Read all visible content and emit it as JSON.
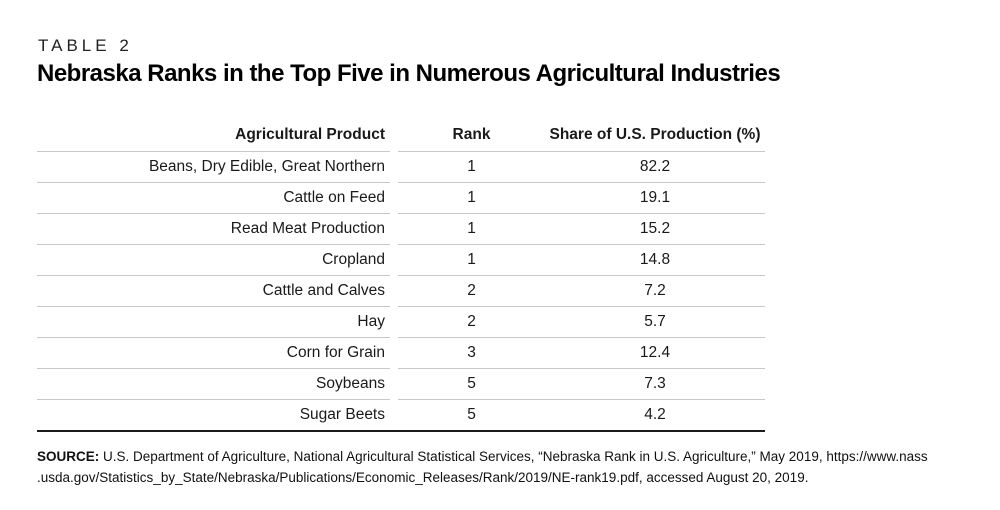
{
  "header": {
    "table_label": "TABLE 2",
    "title": "Nebraska Ranks in the Top Five in Numerous Agricultural Industries"
  },
  "table": {
    "columns": [
      "Agricultural Product",
      "Rank",
      "Share of U.S. Production (%)"
    ],
    "rows": [
      {
        "product": "Beans, Dry Edible, Great Northern",
        "rank": "1",
        "share": "82.2"
      },
      {
        "product": "Cattle on Feed",
        "rank": "1",
        "share": "19.1"
      },
      {
        "product": "Read Meat Production",
        "rank": "1",
        "share": "15.2"
      },
      {
        "product": "Cropland",
        "rank": "1",
        "share": "14.8"
      },
      {
        "product": "Cattle and Calves",
        "rank": "2",
        "share": "7.2"
      },
      {
        "product": "Hay",
        "rank": "2",
        "share": "5.7"
      },
      {
        "product": "Corn for Grain",
        "rank": "3",
        "share": "12.4"
      },
      {
        "product": "Soybeans",
        "rank": "5",
        "share": "7.3"
      },
      {
        "product": "Sugar Beets",
        "rank": "5",
        "share": "4.2"
      }
    ]
  },
  "source": {
    "label": "SOURCE:",
    "line1": "U.S. Department of Agriculture, National Agricultural Statistical Services, “Nebraska Rank in U.S. Agriculture,” May 2019, https://www.nass",
    "line2": ".usda.gov/Statistics_by_State/Nebraska/Publications/Economic_Releases/Rank/2019/NE-rank19.pdf, accessed August 20, 2019."
  },
  "colors": {
    "row_separator": "#c8c8c8",
    "table_bottom_border": "#1a1a1a",
    "text": "#1a1a1a"
  }
}
